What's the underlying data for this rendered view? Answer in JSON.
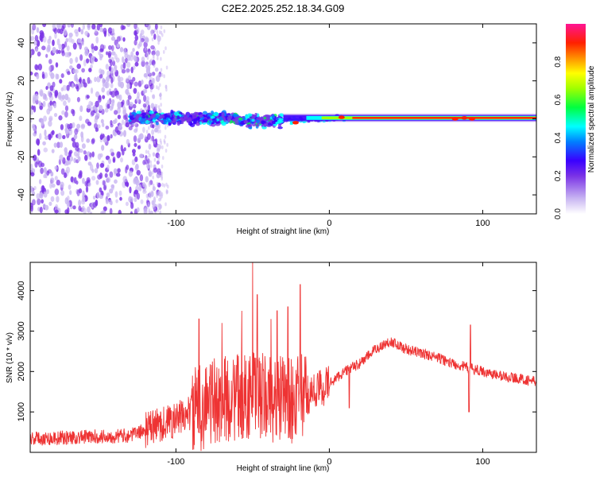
{
  "chart_data": [
    {
      "type": "heatmap",
      "title": "C2E2.2025.252.18.34.G09",
      "xlabel": "Height of straight line (km)",
      "ylabel": "Frequency (Hz)",
      "xlim": [
        -195,
        135
      ],
      "ylim": [
        -50,
        50
      ],
      "xticks": [
        -100,
        0,
        100
      ],
      "yticks": [
        -40,
        -20,
        0,
        20,
        40
      ],
      "colorbar": {
        "label": "Normalized spectral amplitude",
        "range": [
          0,
          1
        ],
        "ticks": [
          "0.0",
          "0.2",
          "0.4",
          "0.6",
          "0.8"
        ],
        "colors": [
          "#ffffff",
          "#c9b6f2",
          "#7a32e6",
          "#3a00ff",
          "#0080ff",
          "#00ffff",
          "#00ff40",
          "#a0ff00",
          "#ffff00",
          "#ff9000",
          "#ff2000",
          "#ff1493"
        ]
      },
      "features": [
        {
          "name": "noise-region",
          "x_range": [
            -195,
            -120
          ],
          "freq_range": [
            -50,
            50
          ],
          "amplitude": 0.15
        },
        {
          "name": "scintillation-band",
          "x_range": [
            -130,
            -30
          ],
          "freq_range": [
            -4,
            4
          ],
          "amplitude": 0.4
        },
        {
          "name": "carrier-line",
          "x_range": [
            -30,
            135
          ],
          "freq_center": 0.5,
          "amplitude": 0.95
        }
      ]
    },
    {
      "type": "line",
      "xlabel": "Height of straight line (km)",
      "ylabel": "SNR (10 * v/v)",
      "xlim": [
        -195,
        135
      ],
      "ylim": [
        0,
        4700
      ],
      "xticks": [
        -100,
        0,
        100
      ],
      "yticks": [
        1000,
        2000,
        3000,
        4000
      ],
      "color": "#ee3333",
      "series": [
        {
          "name": "SNR",
          "x": [
            -195,
            -180,
            -160,
            -140,
            -130,
            -120,
            -110,
            -100,
            -90,
            -80,
            -70,
            -60,
            -50,
            -40,
            -30,
            -20,
            -10,
            0,
            10,
            20,
            30,
            40,
            50,
            60,
            70,
            80,
            90,
            100,
            110,
            120,
            135
          ],
          "y": [
            350,
            350,
            380,
            400,
            420,
            550,
            700,
            800,
            1000,
            1200,
            1300,
            1350,
            1400,
            1350,
            1300,
            1300,
            1500,
            1700,
            2000,
            2200,
            2550,
            2750,
            2550,
            2450,
            2350,
            2200,
            2100,
            2000,
            1900,
            1850,
            1750
          ]
        }
      ],
      "spikes": [
        {
          "x": -85,
          "y": 3300
        },
        {
          "x": -70,
          "y": 3200
        },
        {
          "x": -57,
          "y": 3500
        },
        {
          "x": -50,
          "y": 4700
        },
        {
          "x": -47,
          "y": 3900
        },
        {
          "x": -38,
          "y": 3300
        },
        {
          "x": -34,
          "y": 3500
        },
        {
          "x": -27,
          "y": 3600
        },
        {
          "x": -19,
          "y": 4150
        },
        {
          "x": 92,
          "y": 3150
        }
      ],
      "dips": [
        {
          "x": 13,
          "y": 1100
        },
        {
          "x": 91,
          "y": 1000
        }
      ]
    }
  ]
}
